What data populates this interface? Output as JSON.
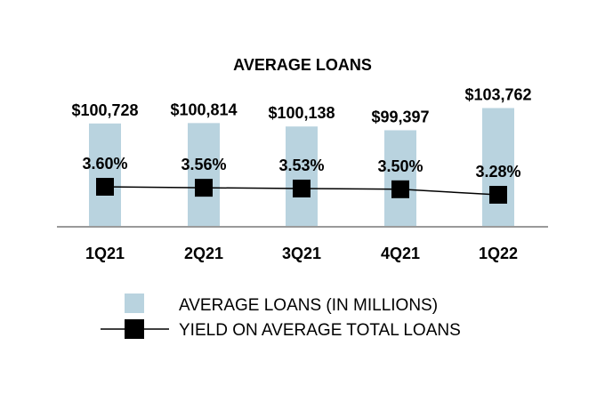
{
  "chart_data": {
    "type": "bar",
    "title": "AVERAGE LOANS",
    "categories": [
      "1Q21",
      "2Q21",
      "3Q21",
      "4Q21",
      "1Q22"
    ],
    "series": [
      {
        "name": "AVERAGE LOANS (IN MILLIONS)",
        "type": "bar",
        "values": [
          100728,
          100814,
          100138,
          99397,
          103762
        ],
        "labels": [
          "$100,728",
          "$100,814",
          "$100,138",
          "$99,397",
          "$103,762"
        ],
        "color": "#b9d3df"
      },
      {
        "name": "YIELD ON AVERAGE TOTAL LOANS",
        "type": "line",
        "values": [
          3.6,
          3.56,
          3.53,
          3.5,
          3.28
        ],
        "labels": [
          "3.60%",
          "3.56%",
          "3.53%",
          "3.50%",
          "3.28%"
        ],
        "color": "#000000"
      }
    ],
    "legend_position": "bottom",
    "grid": false
  }
}
